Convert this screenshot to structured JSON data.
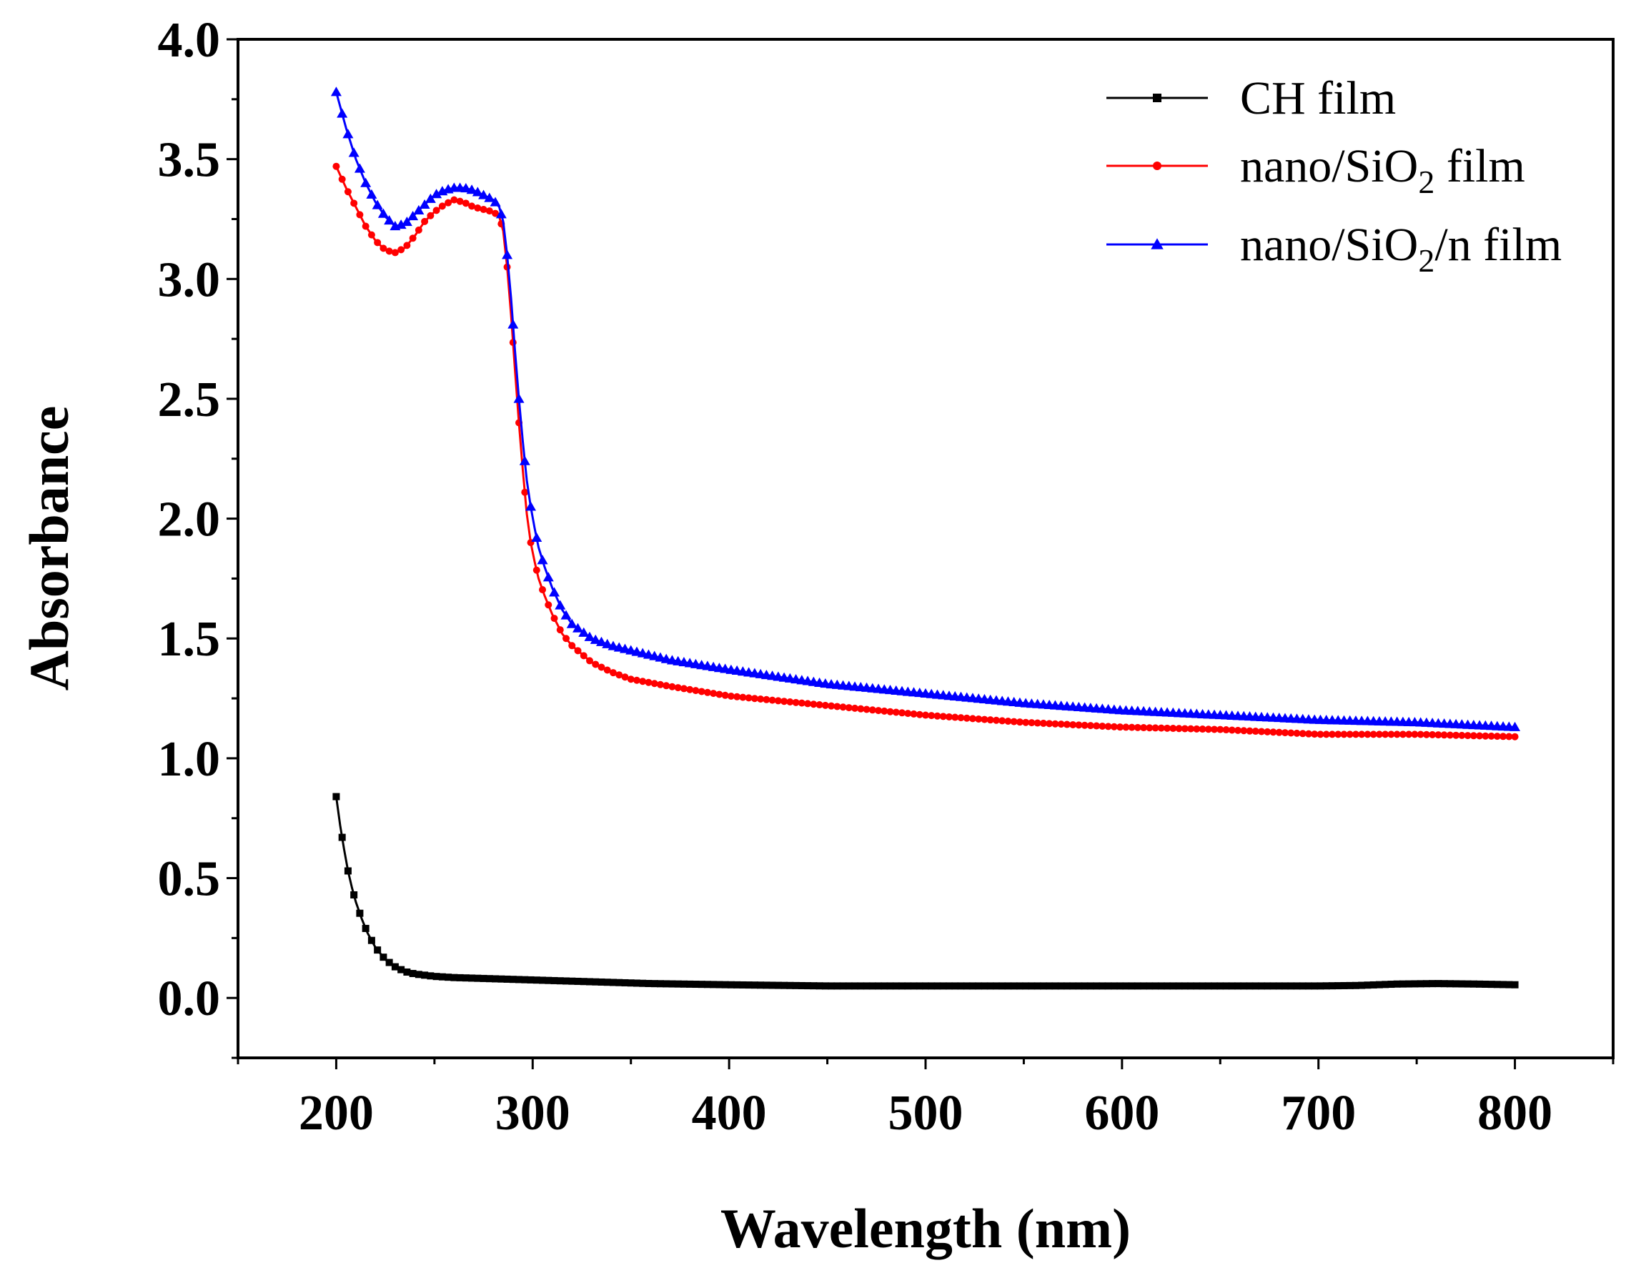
{
  "chart_data": {
    "type": "line",
    "title": "",
    "xlabel": "Wavelength (nm)",
    "ylabel": "Absorbance",
    "xlim": [
      150,
      850
    ],
    "ylim": [
      -0.25,
      4.0
    ],
    "x_ticks": [
      200,
      300,
      400,
      500,
      600,
      700,
      800
    ],
    "x_tick_labels": [
      "200",
      "300",
      "400",
      "500",
      "600",
      "700",
      "800"
    ],
    "y_ticks": [
      0.0,
      0.5,
      1.0,
      1.5,
      2.0,
      2.5,
      3.0,
      3.5,
      4.0
    ],
    "y_tick_labels": [
      "0.0",
      "0.5",
      "1.0",
      "1.5",
      "2.0",
      "2.5",
      "3.0",
      "3.5",
      "4.0"
    ],
    "grid": false,
    "legend": "top-right",
    "series": [
      {
        "name": "CH film",
        "legend_parts": {
          "main": "CH film",
          "sub": "",
          "after": ""
        },
        "color": "#000000",
        "marker": "square",
        "x": [
          200,
          202,
          204,
          206,
          208,
          210,
          213,
          216,
          220,
          225,
          230,
          235,
          240,
          245,
          250,
          260,
          280,
          300,
          320,
          340,
          360,
          400,
          450,
          500,
          550,
          600,
          650,
          700,
          720,
          740,
          760,
          780,
          800
        ],
        "y": [
          0.84,
          0.72,
          0.62,
          0.53,
          0.46,
          0.4,
          0.33,
          0.27,
          0.21,
          0.16,
          0.13,
          0.11,
          0.1,
          0.095,
          0.09,
          0.085,
          0.08,
          0.075,
          0.07,
          0.065,
          0.06,
          0.055,
          0.05,
          0.05,
          0.05,
          0.05,
          0.05,
          0.05,
          0.052,
          0.058,
          0.06,
          0.058,
          0.055
        ]
      },
      {
        "name": "nano/SiO2 film",
        "legend_parts": {
          "main": "nano/SiO",
          "sub": "2",
          "after": " film"
        },
        "color": "#ff0000",
        "marker": "circle",
        "x": [
          200,
          205,
          210,
          215,
          220,
          225,
          230,
          235,
          240,
          245,
          250,
          255,
          260,
          265,
          270,
          275,
          280,
          283,
          285,
          287,
          289,
          291,
          293,
          295,
          297,
          299,
          301,
          303,
          306,
          310,
          315,
          320,
          330,
          340,
          350,
          370,
          400,
          450,
          500,
          550,
          600,
          650,
          700,
          750,
          800
        ],
        "y": [
          3.47,
          3.38,
          3.3,
          3.22,
          3.16,
          3.12,
          3.11,
          3.13,
          3.18,
          3.24,
          3.28,
          3.31,
          3.33,
          3.32,
          3.3,
          3.29,
          3.28,
          3.26,
          3.2,
          3.05,
          2.85,
          2.62,
          2.4,
          2.2,
          2.02,
          1.9,
          1.82,
          1.75,
          1.68,
          1.6,
          1.52,
          1.47,
          1.4,
          1.36,
          1.33,
          1.3,
          1.26,
          1.22,
          1.18,
          1.15,
          1.13,
          1.12,
          1.1,
          1.1,
          1.09
        ]
      },
      {
        "name": "nano/SiO2/n film",
        "legend_parts": {
          "main": "nano/SiO",
          "sub": "2",
          "after": "/n film"
        },
        "color": "#0000ff",
        "marker": "triangle",
        "x": [
          200,
          205,
          210,
          215,
          220,
          225,
          230,
          235,
          240,
          245,
          250,
          255,
          260,
          265,
          270,
          275,
          280,
          283,
          285,
          287,
          289,
          291,
          293,
          295,
          297,
          299,
          301,
          303,
          306,
          310,
          315,
          320,
          330,
          340,
          350,
          370,
          400,
          450,
          500,
          550,
          600,
          650,
          700,
          750,
          800
        ],
        "y": [
          3.78,
          3.63,
          3.5,
          3.4,
          3.32,
          3.26,
          3.22,
          3.23,
          3.27,
          3.31,
          3.35,
          3.37,
          3.38,
          3.38,
          3.37,
          3.35,
          3.33,
          3.3,
          3.24,
          3.1,
          2.92,
          2.7,
          2.5,
          2.32,
          2.16,
          2.05,
          1.96,
          1.88,
          1.8,
          1.71,
          1.62,
          1.56,
          1.5,
          1.47,
          1.45,
          1.41,
          1.37,
          1.31,
          1.27,
          1.23,
          1.2,
          1.18,
          1.16,
          1.15,
          1.13
        ]
      }
    ]
  }
}
